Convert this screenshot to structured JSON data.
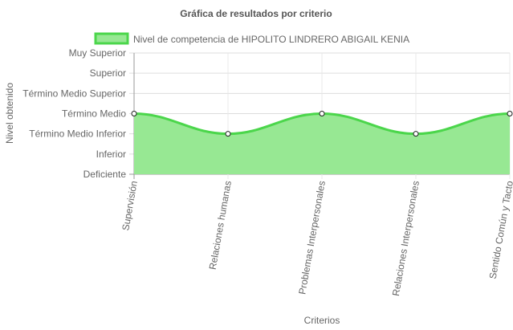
{
  "chart_data": {
    "type": "area",
    "title": "Gráfica de resultados por criterio",
    "xlabel": "Criterios",
    "ylabel": "Nivel obtenido",
    "levels": [
      "Deficiente",
      "Inferior",
      "Término Medio Inferior",
      "Término Medio",
      "Término Medio Superior",
      "Superior",
      "Muy Superior"
    ],
    "categories": [
      "Supervisión",
      "Relaciones humanas",
      "Problemas Interpersonales",
      "Relaciones Interpersonales",
      "Sentido Común y Tacto"
    ],
    "series": [
      {
        "name": "Nivel de competencia de HIPOLITO LINDRERO ABIGAIL KENIA",
        "values": [
          "Término Medio",
          "Término Medio Inferior",
          "Término Medio",
          "Término Medio Inferior",
          "Término Medio"
        ]
      }
    ],
    "legend_position": "top",
    "grid": true,
    "colors": {
      "fill": "#97e893",
      "line": "#4bd64b",
      "point_fill": "#ffffff",
      "point_stroke": "#1f1f1f"
    }
  }
}
